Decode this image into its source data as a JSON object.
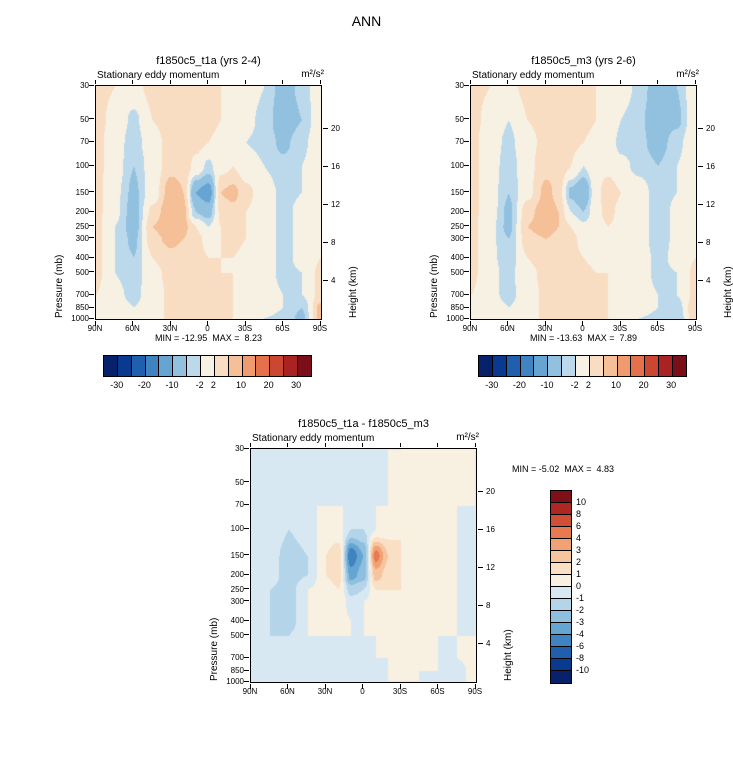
{
  "title": "ANN",
  "palette": {
    "fill_colors": [
      "#08216b",
      "#0a3a8f",
      "#1f5fae",
      "#3f83c0",
      "#66a5d2",
      "#92c1e0",
      "#bcd9ec",
      "#f7f1e4",
      "#f9ddc2",
      "#f5bf98",
      "#ef9b6f",
      "#e4714b",
      "#cc4731",
      "#a82322",
      "#7a0f19"
    ],
    "diff_colors": [
      "#08216b",
      "#0a3a8f",
      "#1f5fae",
      "#3f83c0",
      "#66a5d2",
      "#8ebfdf",
      "#b3d4e9",
      "#d8e8f2",
      "#f8f0e0",
      "#f9dfc4",
      "#f6c49d",
      "#f0a274",
      "#e77a50",
      "#d14f35",
      "#ad2823",
      "#7e1118"
    ]
  },
  "chart_data": [
    {
      "type": "heatmap",
      "id": "f1850c5_t1a",
      "title": "f1850c5_t1a (yrs 2-4)",
      "field": "Stationary eddy momentum",
      "units": "m²/s²",
      "min": -12.95,
      "max": 8.23,
      "stats_text": "MIN = -12.95  MAX =  8.23",
      "y_axis_label": "Pressure (mb)",
      "right_axis_label": "Height (km)",
      "x_tick_labels": [
        "90N",
        "60N",
        "30N",
        "0",
        "30S",
        "60S",
        "90S"
      ],
      "y_tick_labels": [
        "30",
        "50",
        "70",
        "100",
        "150",
        "200",
        "250",
        "300",
        "400",
        "500",
        "700",
        "850",
        "1000"
      ],
      "right_tick_labels": [
        "20",
        "16",
        "12",
        "8",
        "4"
      ],
      "colorbar_orientation": "horizontal",
      "contour_levels": [
        -30,
        -25,
        -20,
        -15,
        -10,
        -5,
        -2,
        2,
        5,
        10,
        15,
        20,
        25,
        30
      ],
      "colorbar_labels": [
        "-30",
        "-20",
        "-10",
        "-2",
        "2",
        "10",
        "20",
        "30"
      ],
      "palette": "fill_colors",
      "lats": [
        90,
        75,
        60,
        45,
        30,
        20,
        10,
        0,
        -10,
        -20,
        -30,
        -45,
        -60,
        -75,
        -90
      ],
      "pressures": [
        30,
        50,
        70,
        100,
        150,
        200,
        250,
        300,
        400,
        500,
        700,
        850,
        1000
      ],
      "values": [
        [
          3,
          2,
          1,
          3,
          3,
          3,
          3,
          3,
          2,
          1,
          0,
          -2,
          -7,
          -4,
          1
        ],
        [
          3,
          1,
          -3,
          2,
          3,
          3,
          3,
          3,
          2,
          1,
          -1,
          -3,
          -8,
          -5,
          1
        ],
        [
          3,
          0,
          -4,
          1,
          3,
          3,
          3,
          2,
          1,
          0,
          -2,
          -3,
          -6,
          -3,
          1
        ],
        [
          3,
          0,
          -5,
          0,
          4,
          4,
          1,
          -3,
          1,
          2,
          0,
          -2,
          -4,
          -2,
          1
        ],
        [
          3,
          -1,
          -6,
          0,
          7,
          5,
          -10,
          -13,
          5,
          6,
          3,
          0,
          -3,
          -2,
          2
        ],
        [
          3,
          -1,
          -7,
          3,
          8,
          6,
          -5,
          -7,
          3,
          4,
          2,
          0,
          -3,
          -1,
          2
        ],
        [
          3,
          -2,
          -7,
          5,
          8,
          6,
          2,
          -2,
          2,
          3,
          2,
          0,
          -3,
          -1,
          2
        ],
        [
          3,
          -2,
          -6,
          4,
          6,
          5,
          3,
          1,
          2,
          3,
          2,
          0,
          -3,
          -1,
          2
        ],
        [
          3,
          -2,
          -5,
          2,
          4,
          3,
          3,
          2,
          2,
          2,
          1,
          0,
          -3,
          -1,
          2
        ],
        [
          3,
          -2,
          -4,
          1,
          3,
          3,
          3,
          3,
          2,
          2,
          1,
          0,
          -3,
          -2,
          3
        ],
        [
          2,
          -1,
          -3,
          0,
          3,
          3,
          3,
          3,
          3,
          2,
          1,
          0,
          -2,
          -2,
          3
        ],
        [
          1,
          0,
          -2,
          0,
          3,
          3,
          3,
          3,
          3,
          2,
          1,
          0,
          -2,
          -5,
          6
        ],
        [
          1,
          0,
          -1,
          0,
          3,
          3,
          3,
          3,
          3,
          2,
          0,
          -2,
          -3,
          -6,
          6
        ]
      ]
    },
    {
      "type": "heatmap",
      "id": "f1850c5_m3",
      "title": "f1850c5_m3 (yrs 2-6)",
      "field": "Stationary eddy momentum",
      "units": "m²/s²",
      "min": -13.63,
      "max": 7.89,
      "stats_text": "MIN = -13.63  MAX =  7.89",
      "y_axis_label": "Pressure (mb)",
      "right_axis_label": "Height (km)",
      "x_tick_labels": [
        "90N",
        "60N",
        "30N",
        "0",
        "30S",
        "60S",
        "90S"
      ],
      "y_tick_labels": [
        "30",
        "50",
        "70",
        "100",
        "150",
        "200",
        "250",
        "300",
        "400",
        "500",
        "700",
        "850",
        "1000"
      ],
      "right_tick_labels": [
        "20",
        "16",
        "12",
        "8",
        "4"
      ],
      "colorbar_orientation": "horizontal",
      "contour_levels": [
        -30,
        -25,
        -20,
        -15,
        -10,
        -5,
        -2,
        2,
        5,
        10,
        15,
        20,
        25,
        30
      ],
      "colorbar_labels": [
        "-30",
        "-20",
        "-10",
        "-2",
        "2",
        "10",
        "20",
        "30"
      ],
      "palette": "fill_colors",
      "lats": [
        90,
        75,
        60,
        45,
        30,
        20,
        10,
        0,
        -10,
        -20,
        -30,
        -45,
        -60,
        -75,
        -90
      ],
      "pressures": [
        30,
        50,
        70,
        100,
        150,
        200,
        250,
        300,
        400,
        500,
        700,
        850,
        1000
      ],
      "values": [
        [
          3,
          2,
          1,
          3,
          3,
          3,
          3,
          3,
          2,
          1,
          0,
          -3,
          -8,
          -5,
          1
        ],
        [
          3,
          1,
          -2,
          2,
          3,
          3,
          3,
          3,
          2,
          1,
          -2,
          -4,
          -9,
          -6,
          1
        ],
        [
          3,
          0,
          -3,
          1,
          3,
          3,
          3,
          2,
          1,
          0,
          -3,
          -4,
          -7,
          -3,
          1
        ],
        [
          3,
          0,
          -4,
          1,
          4,
          4,
          2,
          -2,
          1,
          1,
          -1,
          -3,
          -5,
          -2,
          1
        ],
        [
          3,
          0,
          -5,
          1,
          6,
          4,
          -6,
          -10,
          1,
          4,
          2,
          0,
          -4,
          -2,
          2
        ],
        [
          3,
          0,
          -6,
          4,
          7,
          5,
          -2,
          -5,
          1,
          3,
          1,
          0,
          -4,
          -1,
          2
        ],
        [
          3,
          -1,
          -6,
          5,
          7,
          5,
          2,
          -1,
          1,
          2,
          1,
          0,
          -4,
          -1,
          2
        ],
        [
          3,
          -1,
          -5,
          4,
          5,
          4,
          3,
          1,
          1,
          2,
          1,
          0,
          -4,
          -1,
          2
        ],
        [
          3,
          -1,
          -4,
          2,
          4,
          3,
          3,
          2,
          1,
          2,
          0,
          0,
          -3,
          -1,
          2
        ],
        [
          3,
          -1,
          -3,
          1,
          3,
          3,
          3,
          3,
          2,
          2,
          0,
          0,
          -3,
          -2,
          3
        ],
        [
          2,
          -1,
          -3,
          0,
          3,
          3,
          3,
          3,
          3,
          2,
          0,
          0,
          -2,
          -2,
          3
        ],
        [
          1,
          0,
          -2,
          0,
          3,
          3,
          3,
          3,
          3,
          2,
          0,
          0,
          -2,
          -4,
          5
        ],
        [
          1,
          0,
          -1,
          0,
          3,
          3,
          3,
          3,
          3,
          2,
          0,
          -2,
          -3,
          -5,
          5
        ]
      ]
    },
    {
      "type": "heatmap",
      "id": "f1850c5_t1a - f1850c5_m3",
      "title": "f1850c5_t1a - f1850c5_m3",
      "field": "Stationary eddy momentum",
      "units": "m²/s²",
      "min": -5.02,
      "max": 4.83,
      "stats_text": "MIN = -5.02  MAX =  4.83",
      "y_axis_label": "Pressure (mb)",
      "right_axis_label": "Height (km)",
      "x_tick_labels": [
        "90N",
        "60N",
        "30N",
        "0",
        "30S",
        "60S",
        "90S"
      ],
      "y_tick_labels": [
        "30",
        "50",
        "70",
        "100",
        "150",
        "200",
        "250",
        "300",
        "400",
        "500",
        "700",
        "850",
        "1000"
      ],
      "right_tick_labels": [
        "20",
        "16",
        "12",
        "8",
        "4"
      ],
      "colorbar_orientation": "vertical",
      "contour_levels": [
        -10,
        -8,
        -6,
        -4,
        -3,
        -2,
        -1,
        0,
        1,
        2,
        3,
        4,
        6,
        8,
        10
      ],
      "colorbar_labels": [
        "10",
        "8",
        "6",
        "4",
        "3",
        "2",
        "1",
        "0",
        "-1",
        "-2",
        "-3",
        "-4",
        "-6",
        "-8",
        "-10"
      ],
      "palette": "diff_colors",
      "lats": [
        90,
        75,
        60,
        45,
        30,
        20,
        10,
        0,
        -10,
        -20,
        -30,
        -45,
        -60,
        -75,
        -90
      ],
      "pressures": [
        30,
        50,
        70,
        100,
        150,
        200,
        250,
        300,
        400,
        500,
        700,
        850,
        1000
      ],
      "values": [
        [
          0,
          0,
          0,
          0,
          0,
          0,
          0,
          0,
          0,
          0,
          0,
          0.5,
          1,
          0.5,
          0
        ],
        [
          0,
          0,
          -0.5,
          0,
          0,
          0,
          0,
          0,
          0,
          0,
          0.5,
          1,
          1,
          0.5,
          0
        ],
        [
          0,
          0,
          -1,
          0,
          0,
          0,
          0,
          0,
          0,
          0,
          0.5,
          1,
          1,
          0,
          0
        ],
        [
          0,
          0,
          -1,
          -0.5,
          0.5,
          0.5,
          -1,
          -1,
          0,
          0.5,
          1,
          1,
          1,
          0,
          0
        ],
        [
          0,
          -0.5,
          -1.5,
          -1,
          1,
          1.5,
          -4.8,
          -3,
          4.5,
          2,
          1,
          0.5,
          1,
          0,
          0
        ],
        [
          0,
          -0.5,
          -1.5,
          -1,
          1,
          1.5,
          -3.5,
          -2.5,
          2.5,
          1.5,
          1,
          0.5,
          1,
          0,
          0
        ],
        [
          0,
          -1,
          -1.5,
          0,
          0.5,
          1,
          -1.5,
          -1,
          1,
          1,
          1,
          0.5,
          1,
          0,
          0
        ],
        [
          0,
          -1,
          -1.5,
          0,
          0.5,
          1,
          -0.5,
          0,
          0.5,
          1,
          1,
          0.5,
          1,
          0,
          0
        ],
        [
          0,
          -1,
          -1.5,
          0,
          0.5,
          0.5,
          0,
          0,
          0.5,
          0.5,
          0.5,
          0.5,
          0.5,
          0,
          0
        ],
        [
          0,
          -1,
          -1,
          0,
          0,
          0,
          0,
          0,
          0,
          0.5,
          0.5,
          0.5,
          0,
          0,
          0
        ],
        [
          0,
          -0.5,
          -1,
          -0.5,
          0,
          0,
          0,
          0,
          0,
          0,
          0.5,
          0.5,
          0,
          0,
          0.5
        ],
        [
          0,
          0,
          -0.5,
          -0.5,
          0,
          0,
          0,
          0,
          0,
          0,
          0.5,
          0,
          0,
          -0.5,
          0.5
        ],
        [
          0,
          0,
          -0.5,
          0,
          0,
          0,
          0,
          0,
          0,
          0,
          0,
          0,
          0,
          -0.5,
          0.5
        ]
      ]
    }
  ]
}
